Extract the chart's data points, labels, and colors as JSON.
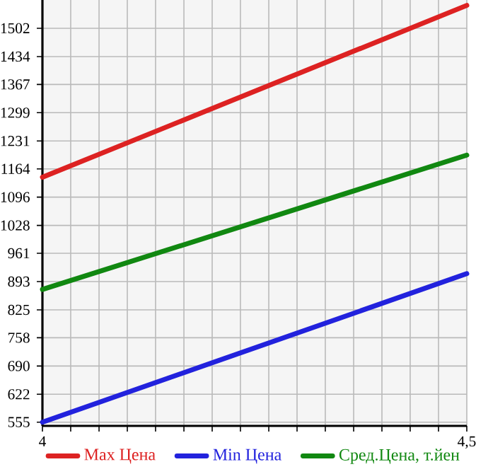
{
  "chart_data": {
    "type": "line",
    "x": [
      4,
      4.5
    ],
    "series": [
      {
        "name": "Max Цена",
        "color": "#dd2222",
        "values": [
          1144,
          1557
        ]
      },
      {
        "name": "Min Цена",
        "color": "#2222dd",
        "values": [
          555,
          912
        ]
      },
      {
        "name": "Сред.Цена, т.йен",
        "color": "#118811",
        "values": [
          874,
          1197
        ]
      }
    ],
    "xlim": [
      4,
      4.5
    ],
    "xticks": [
      4,
      {
        "value": 4.0333,
        "label": null
      },
      {
        "value": 4.0667,
        "label": null
      },
      {
        "value": 4.1,
        "label": null
      },
      {
        "value": 4.1333,
        "label": null
      },
      {
        "value": 4.1667,
        "label": null
      },
      {
        "value": 4.2,
        "label": null
      },
      {
        "value": 4.2333,
        "label": null
      },
      {
        "value": 4.2667,
        "label": null
      },
      {
        "value": 4.3,
        "label": null
      },
      {
        "value": 4.3333,
        "label": null
      },
      {
        "value": 4.3667,
        "label": null
      },
      {
        "value": 4.4,
        "label": null
      },
      {
        "value": 4.4333,
        "label": null
      },
      {
        "value": 4.4667,
        "label": null
      },
      {
        "value": 4.5,
        "label": "4,5"
      }
    ],
    "ylim": [
      546,
      1570
    ],
    "yticks": [
      555,
      622,
      690,
      758,
      825,
      893,
      961,
      1028,
      1096,
      1164,
      1231,
      1299,
      1367,
      1434,
      1502
    ],
    "grid": true,
    "legend": "bottom"
  }
}
